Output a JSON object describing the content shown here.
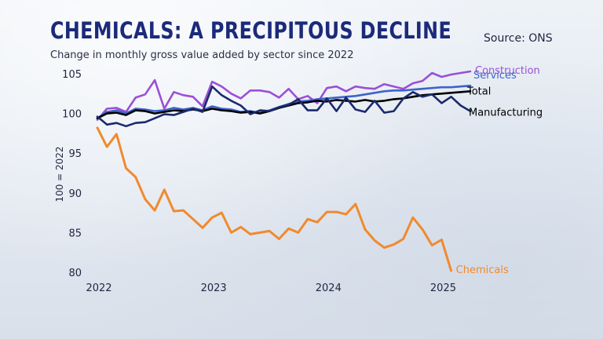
{
  "header": {
    "title": "CHEMICALS: A PRECIPITOUS DECLINE",
    "subtitle": "Change in monthly gross value added by sector since 2022",
    "source": "Source: ONS"
  },
  "colors": {
    "construction": "#9b4fd6",
    "services": "#3f63c9",
    "total": "#000000",
    "manufacturing": "#1a2a6c",
    "chemicals": "#f08a2e",
    "title": "#1b2a7a",
    "axis_text": "#1f2440"
  },
  "chart_data": {
    "type": "line",
    "title": "CHEMICALS: A PRECIPITOUS DECLINE",
    "subtitle": "Change in monthly gross value added by sector since 2022",
    "ylabel": "100 = 2022",
    "xlabel": "",
    "ylim": [
      80,
      106
    ],
    "xlim": [
      0,
      39
    ],
    "yticks": [
      80,
      85,
      90,
      95,
      100,
      105
    ],
    "xticks": [
      {
        "x": 0,
        "label": "2022"
      },
      {
        "x": 12,
        "label": "2023"
      },
      {
        "x": 24,
        "label": "2024"
      },
      {
        "x": 36,
        "label": "2025"
      }
    ],
    "grid": false,
    "legend": "inline labels at line ends",
    "series": [
      {
        "name": "Construction",
        "key": "construction",
        "values": [
          99.2,
          100.6,
          100.7,
          100.2,
          102.0,
          102.4,
          104.2,
          100.6,
          102.7,
          102.3,
          102.1,
          100.9,
          104.0,
          103.4,
          102.5,
          101.9,
          102.9,
          102.9,
          102.7,
          102.0,
          103.1,
          101.8,
          102.2,
          101.3,
          103.2,
          103.4,
          102.8,
          103.4,
          103.2,
          103.1,
          103.7,
          103.4,
          103.1,
          103.8,
          104.1,
          105.1,
          104.6,
          104.9,
          105.1,
          105.3
        ]
      },
      {
        "name": "Services",
        "key": "services",
        "values": [
          99.4,
          100.2,
          100.4,
          100.0,
          100.6,
          100.5,
          100.3,
          100.4,
          100.7,
          100.5,
          100.7,
          100.4,
          100.9,
          100.6,
          100.5,
          100.2,
          100.3,
          100.1,
          100.4,
          100.8,
          101.2,
          101.5,
          101.6,
          101.8,
          101.9,
          102.0,
          102.1,
          102.2,
          102.4,
          102.6,
          102.8,
          102.9,
          102.9,
          103.0,
          103.1,
          103.2,
          103.3,
          103.3,
          103.4,
          103.5
        ]
      },
      {
        "name": "Total",
        "key": "total",
        "values": [
          99.4,
          100.0,
          100.1,
          99.8,
          100.4,
          100.3,
          100.0,
          100.2,
          100.4,
          100.3,
          100.5,
          100.3,
          100.6,
          100.4,
          100.3,
          100.1,
          100.2,
          100.0,
          100.3,
          100.7,
          101.0,
          101.3,
          101.4,
          101.6,
          101.5,
          101.7,
          101.6,
          101.5,
          101.7,
          101.5,
          101.6,
          101.8,
          101.9,
          102.1,
          102.3,
          102.4,
          102.5,
          102.6,
          102.7,
          102.8
        ]
      },
      {
        "name": "Manufacturing",
        "key": "manufacturing",
        "values": [
          99.6,
          98.6,
          98.8,
          98.4,
          98.8,
          98.9,
          99.4,
          99.9,
          99.8,
          100.2,
          100.6,
          100.2,
          103.4,
          102.3,
          101.6,
          101.0,
          99.9,
          100.4,
          100.3,
          100.8,
          101.1,
          101.8,
          100.4,
          100.4,
          101.9,
          100.3,
          102.0,
          100.5,
          100.2,
          101.6,
          100.1,
          100.3,
          101.9,
          102.7,
          102.1,
          102.4,
          101.3,
          102.1,
          101.0,
          100.3
        ]
      },
      {
        "name": "Chemicals",
        "key": "chemicals",
        "values": [
          98.2,
          95.8,
          97.4,
          93.1,
          92.0,
          89.2,
          87.8,
          90.4,
          87.7,
          87.8,
          86.7,
          85.6,
          86.9,
          87.5,
          85.0,
          85.7,
          84.8,
          85.0,
          85.2,
          84.2,
          85.5,
          85.0,
          86.7,
          86.3,
          87.6,
          87.6,
          87.3,
          88.6,
          85.4,
          84.0,
          83.1,
          83.5,
          84.2,
          86.9,
          85.4,
          83.4,
          84.1,
          80.2
        ]
      }
    ]
  }
}
